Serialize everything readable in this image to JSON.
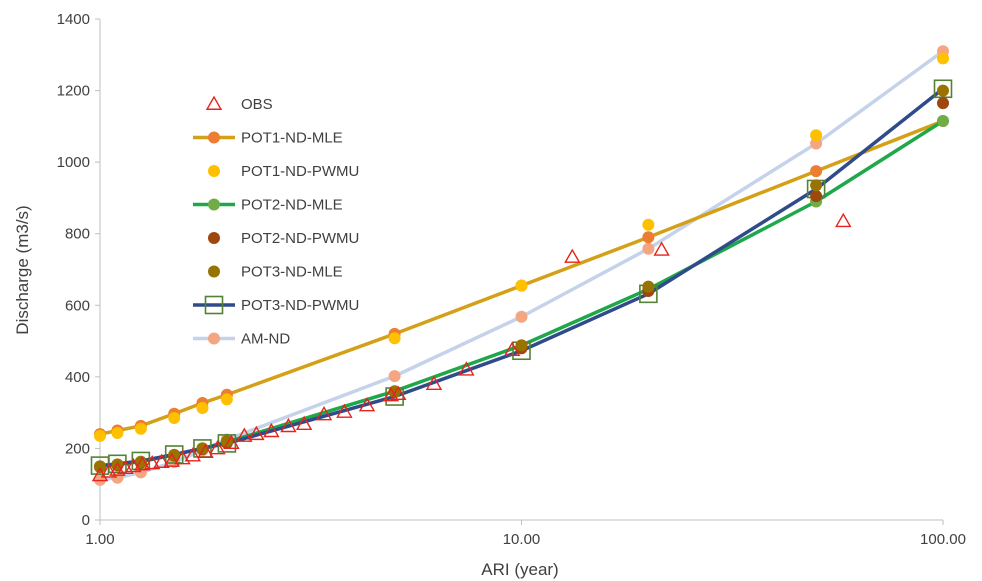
{
  "chart_data": {
    "type": "scatter",
    "xlabel": "ARI (year)",
    "ylabel": "Discharge (m3/s)",
    "x_scale": "log",
    "xlim": [
      1,
      100
    ],
    "ylim": [
      0,
      1400
    ],
    "x_ticks": [
      1,
      10,
      100
    ],
    "x_tick_labels": [
      "1.00",
      "10.00",
      "100.00"
    ],
    "y_ticks": [
      0,
      200,
      400,
      600,
      800,
      1000,
      1200,
      1400
    ],
    "y_tick_labels": [
      "0",
      "200",
      "400",
      "600",
      "800",
      "1000",
      "1200",
      "1400"
    ],
    "grid": false,
    "legend_position": "upper-left inside plot",
    "series": [
      {
        "name": "OBS",
        "style": "triangle-open",
        "color": "#e8221c",
        "points": [
          [
            1.0,
            125
          ],
          [
            1.05,
            135
          ],
          [
            1.1,
            140
          ],
          [
            1.15,
            145
          ],
          [
            1.2,
            150
          ],
          [
            1.26,
            155
          ],
          [
            1.33,
            158
          ],
          [
            1.4,
            162
          ],
          [
            1.48,
            165
          ],
          [
            1.57,
            172
          ],
          [
            1.66,
            180
          ],
          [
            1.78,
            190
          ],
          [
            1.9,
            200
          ],
          [
            2.05,
            215
          ],
          [
            2.2,
            235
          ],
          [
            2.35,
            240
          ],
          [
            2.55,
            248
          ],
          [
            2.8,
            262
          ],
          [
            3.05,
            268
          ],
          [
            3.4,
            295
          ],
          [
            3.8,
            302
          ],
          [
            4.3,
            320
          ],
          [
            4.9,
            348
          ],
          [
            5.1,
            352
          ],
          [
            6.2,
            380
          ],
          [
            7.4,
            420
          ],
          [
            9.5,
            475
          ],
          [
            13.2,
            735
          ],
          [
            21.5,
            755
          ],
          [
            58,
            835
          ]
        ]
      },
      {
        "name": "POT1-ND-MLE",
        "style": "line-marker",
        "color": "#d4a017",
        "marker_color": "#ed7d31",
        "points": [
          [
            1.0,
            240
          ],
          [
            1.1,
            250
          ],
          [
            1.25,
            263
          ],
          [
            1.5,
            297
          ],
          [
            1.75,
            327
          ],
          [
            2.0,
            350
          ],
          [
            5.0,
            520
          ],
          [
            10.0,
            655
          ],
          [
            20.0,
            790
          ],
          [
            50.0,
            975
          ],
          [
            100.0,
            1115
          ]
        ]
      },
      {
        "name": "POT1-ND-PWMU",
        "style": "marker",
        "color": "#ffc000",
        "points": [
          [
            1.0,
            235
          ],
          [
            1.1,
            243
          ],
          [
            1.25,
            255
          ],
          [
            1.5,
            285
          ],
          [
            1.75,
            313
          ],
          [
            2.0,
            337
          ],
          [
            5.0,
            508
          ],
          [
            10.0,
            655
          ],
          [
            20.0,
            825
          ],
          [
            50.0,
            1075
          ],
          [
            100.0,
            1290
          ]
        ]
      },
      {
        "name": "POT2-ND-MLE",
        "style": "line-marker",
        "color": "#1ea84a",
        "marker_color": "#70ad47",
        "points": [
          [
            1.0,
            150
          ],
          [
            1.1,
            155
          ],
          [
            1.25,
            163
          ],
          [
            1.5,
            182
          ],
          [
            1.75,
            200
          ],
          [
            2.0,
            218
          ],
          [
            5.0,
            360
          ],
          [
            10.0,
            488
          ],
          [
            20.0,
            645
          ],
          [
            50.0,
            890
          ],
          [
            100.0,
            1115
          ]
        ]
      },
      {
        "name": "POT2-ND-PWMU",
        "style": "marker",
        "color": "#9e480e",
        "points": [
          [
            1.0,
            148
          ],
          [
            1.1,
            153
          ],
          [
            1.25,
            160
          ],
          [
            1.5,
            180
          ],
          [
            1.75,
            198
          ],
          [
            2.0,
            215
          ],
          [
            5.0,
            358
          ],
          [
            10.0,
            480
          ],
          [
            20.0,
            640
          ],
          [
            50.0,
            905
          ],
          [
            100.0,
            1165
          ]
        ]
      },
      {
        "name": "POT3-ND-MLE",
        "style": "marker",
        "color": "#997300",
        "points": [
          [
            1.0,
            150
          ],
          [
            1.1,
            155
          ],
          [
            1.25,
            162
          ],
          [
            1.5,
            182
          ],
          [
            1.75,
            200
          ],
          [
            2.0,
            220
          ],
          [
            5.0,
            358
          ],
          [
            10.0,
            488
          ],
          [
            20.0,
            652
          ],
          [
            50.0,
            935
          ],
          [
            100.0,
            1200
          ]
        ]
      },
      {
        "name": "POT3-ND-PWMU",
        "style": "line-square",
        "color": "#2f4b8a",
        "marker_color": "#548235",
        "points": [
          [
            1.0,
            152
          ],
          [
            1.1,
            157
          ],
          [
            1.25,
            165
          ],
          [
            1.5,
            183
          ],
          [
            1.75,
            200
          ],
          [
            2.0,
            214
          ],
          [
            5.0,
            345
          ],
          [
            10.0,
            473
          ],
          [
            20.0,
            632
          ],
          [
            50.0,
            925
          ],
          [
            100.0,
            1205
          ]
        ]
      },
      {
        "name": "AM-ND",
        "style": "line-marker",
        "color": "#c5d3ea",
        "marker_color": "#f4a582",
        "points": [
          [
            1.0,
            112
          ],
          [
            1.1,
            118
          ],
          [
            1.25,
            133
          ],
          [
            1.5,
            162
          ],
          [
            1.75,
            195
          ],
          [
            2.0,
            225
          ],
          [
            5.0,
            402
          ],
          [
            10.0,
            568
          ],
          [
            20.0,
            758
          ],
          [
            50.0,
            1052
          ],
          [
            100.0,
            1310
          ]
        ]
      }
    ]
  }
}
